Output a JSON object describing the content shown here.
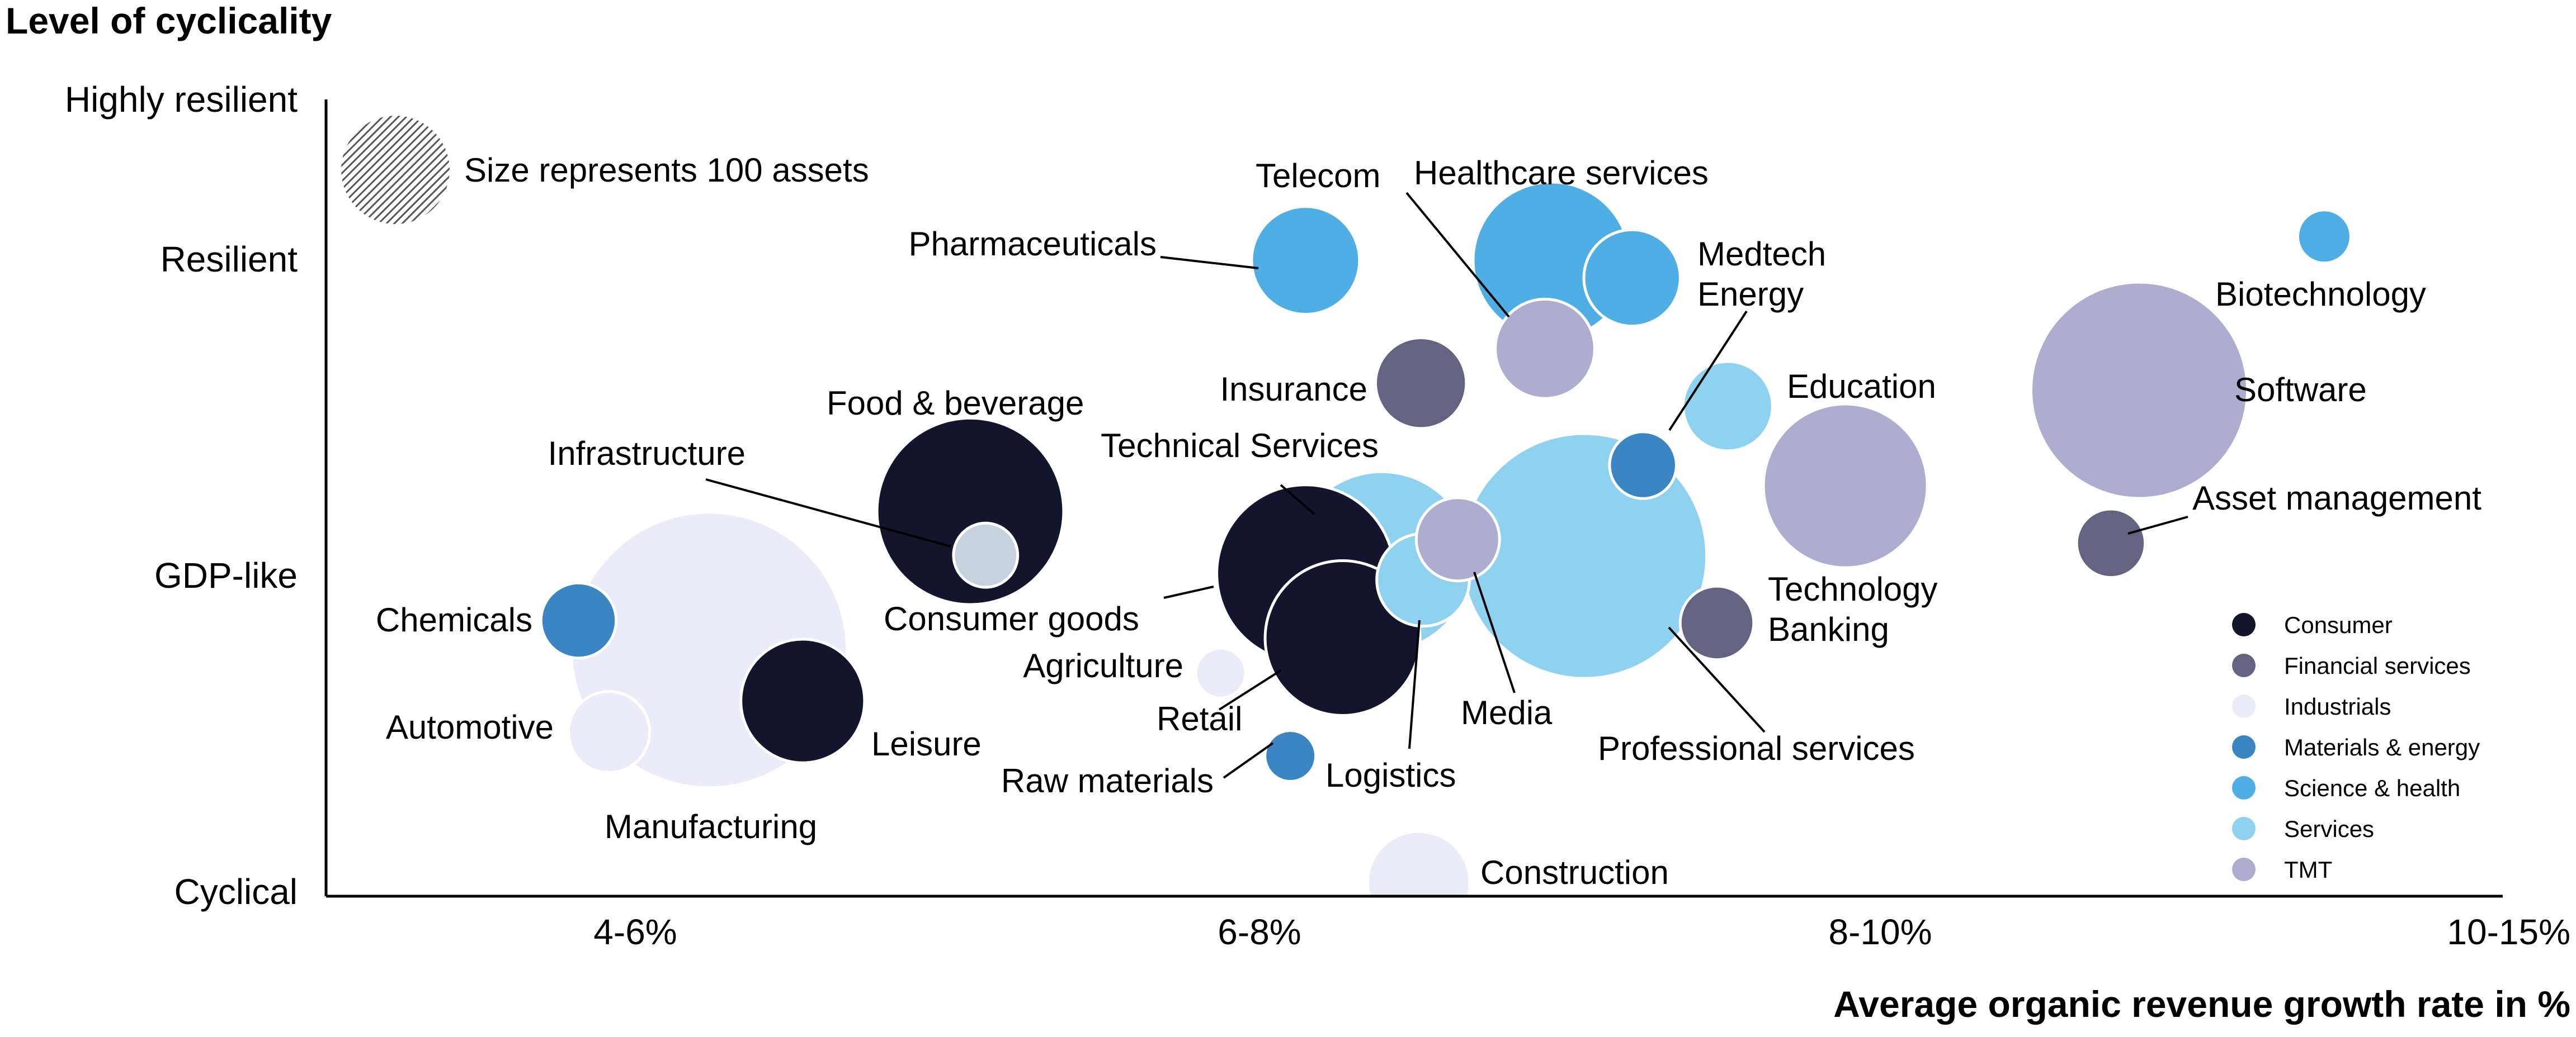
{
  "chart_data": {
    "type": "scatter",
    "subtype": "bubble",
    "ylabel": "Level of cyclicality",
    "xlabel": "Average organic revenue growth rate in %",
    "x_ticks": [
      "4-6%",
      "6-8%",
      "8-10%",
      "10-15%"
    ],
    "y_ticks": [
      "Highly resilient",
      "Resilient",
      "GDP-like",
      "Cyclical"
    ],
    "x_range": [
      0,
      10
    ],
    "y_range": [
      0,
      10
    ],
    "size_note": "Size represents 100 assets",
    "size_unit_assets": 100,
    "legend_position": "bottom-right",
    "legend": [
      {
        "name": "Consumer",
        "color": "#12152b"
      },
      {
        "name": "Financial services",
        "color": "#656382"
      },
      {
        "name": "Industrials",
        "color": "#ebebfa"
      },
      {
        "name": "Materials & energy",
        "color": "#3b85c3"
      },
      {
        "name": "Science & health",
        "color": "#4faee3"
      },
      {
        "name": "Services",
        "color": "#8fd2f0"
      },
      {
        "name": "TMT",
        "color": "#aeaccf"
      }
    ],
    "points": [
      {
        "name": "Manufacturing",
        "sector": "Industrials",
        "x": 1.76,
        "y": 3.09,
        "assets": 646
      },
      {
        "name": "Construction",
        "sector": "Industrials",
        "x": 5.02,
        "y": 0.17,
        "assets": 89
      },
      {
        "name": "Agriculture",
        "sector": "Industrials",
        "x": 4.11,
        "y": 2.8,
        "assets": 21
      },
      {
        "name": "Automotive",
        "sector": "Industrials",
        "x": 1.3,
        "y": 2.06,
        "assets": 56
      },
      {
        "name": "Food & beverage",
        "sector": "Consumer",
        "x": 2.96,
        "y": 4.83,
        "assets": 296
      },
      {
        "name": "Leisure",
        "sector": "Consumer",
        "x": 2.19,
        "y": 2.45,
        "assets": 130
      },
      {
        "name": "Consumer goods",
        "sector": "Consumer",
        "x": 4.5,
        "y": 4.05,
        "assets": 268
      },
      {
        "name": "Retail",
        "sector": "Consumer",
        "x": 4.67,
        "y": 3.24,
        "assets": 204
      },
      {
        "name": "Technical Services",
        "sector": "Services",
        "x": 4.85,
        "y": 4.2,
        "assets": 275
      },
      {
        "name": "Professional services",
        "sector": "Services",
        "x": 5.78,
        "y": 4.27,
        "assets": 510
      },
      {
        "name": "Education",
        "sector": "Services",
        "x": 6.44,
        "y": 6.15,
        "assets": 68
      },
      {
        "name": "Logistics",
        "sector": "Services",
        "x": 5.04,
        "y": 3.97,
        "assets": 73
      },
      {
        "name": "Pharmaceuticals",
        "sector": "Science & health",
        "x": 4.5,
        "y": 7.98,
        "assets": 99
      },
      {
        "name": "Healthcare services",
        "sector": "Science & health",
        "x": 5.63,
        "y": 7.98,
        "assets": 209
      },
      {
        "name": "Medtech",
        "sector": "Science & health",
        "x": 6.0,
        "y": 7.76,
        "assets": 79
      },
      {
        "name": "Biotechnology",
        "sector": "Science & health",
        "x": 9.18,
        "y": 8.28,
        "assets": 24
      },
      {
        "name": "Energy",
        "sector": "Materials & energy",
        "x": 6.05,
        "y": 5.41,
        "assets": 38
      },
      {
        "name": "Chemicals",
        "sector": "Materials & energy",
        "x": 1.16,
        "y": 3.46,
        "assets": 48
      },
      {
        "name": "Raw materials",
        "sector": "Materials & energy",
        "x": 4.43,
        "y": 1.76,
        "assets": 22
      },
      {
        "name": "Insurance",
        "sector": "Financial services",
        "x": 5.03,
        "y": 6.44,
        "assets": 70
      },
      {
        "name": "Asset management",
        "sector": "Financial services",
        "x": 8.2,
        "y": 4.43,
        "assets": 40
      },
      {
        "name": "Technology",
        "sector": "Financial services",
        "x": 6.39,
        "y": 3.43,
        "assets": 46
      },
      {
        "name": "Banking",
        "sector": "Financial services",
        "x": 6.39,
        "y": 3.43,
        "assets": 0
      },
      {
        "name": "Telecom",
        "sector": "TMT",
        "x": 5.6,
        "y": 6.87,
        "assets": 84
      },
      {
        "name": "Software",
        "sector": "TMT",
        "x": 8.33,
        "y": 6.35,
        "assets": 398
      },
      {
        "name": "Media",
        "sector": "TMT",
        "x": 5.2,
        "y": 4.48,
        "assets": 59
      },
      {
        "name": "Technology",
        "sector": "TMT",
        "x": 6.98,
        "y": 5.15,
        "assets": 228
      },
      {
        "name": "Infrastructure",
        "sector": "Industrials",
        "x": 3.03,
        "y": 4.28,
        "assets": 35
      }
    ]
  }
}
